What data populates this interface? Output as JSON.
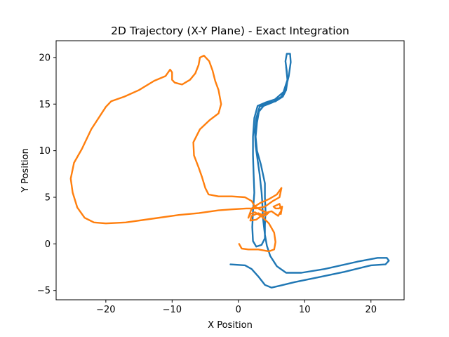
{
  "chart_data": {
    "type": "line",
    "title": "2D Trajectory (X-Y Plane) - Exact Integration",
    "xlabel": "X Position",
    "ylabel": "Y Position",
    "xlim": [
      -27.5,
      25.0
    ],
    "ylim": [
      -6.0,
      21.8
    ],
    "xticks": [
      -20,
      -10,
      0,
      10,
      20
    ],
    "yticks": [
      -5,
      0,
      5,
      10,
      15,
      20
    ],
    "grid": false,
    "series": [
      {
        "color": "#1f77b4",
        "points": [
          [
            -1.2,
            -2.2
          ],
          [
            1.0,
            -2.3
          ],
          [
            2.0,
            -2.7
          ],
          [
            3.0,
            -3.5
          ],
          [
            4.0,
            -4.4
          ],
          [
            5.0,
            -4.7
          ],
          [
            6.2,
            -4.5
          ],
          [
            8.5,
            -4.1
          ],
          [
            12.0,
            -3.6
          ],
          [
            16.0,
            -3.0
          ],
          [
            20.0,
            -2.3
          ],
          [
            22.2,
            -2.2
          ],
          [
            22.7,
            -1.8
          ],
          [
            22.4,
            -1.5
          ],
          [
            21.0,
            -1.5
          ],
          [
            18.0,
            -1.9
          ],
          [
            13.0,
            -2.7
          ],
          [
            9.5,
            -3.1
          ],
          [
            7.2,
            -3.1
          ],
          [
            5.8,
            -2.4
          ],
          [
            4.8,
            -1.3
          ],
          [
            4.3,
            -0.2
          ],
          [
            4.0,
            1.0
          ],
          [
            3.7,
            2.8
          ],
          [
            3.6,
            4.5
          ],
          [
            3.5,
            5.5
          ],
          [
            3.2,
            7.5
          ],
          [
            2.9,
            9.0
          ],
          [
            2.6,
            10.5
          ],
          [
            2.5,
            12.0
          ],
          [
            2.7,
            13.5
          ],
          [
            3.2,
            14.7
          ],
          [
            4.4,
            15.1
          ],
          [
            5.6,
            15.3
          ],
          [
            6.7,
            15.8
          ],
          [
            7.2,
            16.5
          ],
          [
            7.4,
            17.5
          ],
          [
            7.3,
            18.5
          ],
          [
            7.1,
            19.6
          ],
          [
            7.3,
            20.4
          ],
          [
            7.8,
            20.4
          ],
          [
            7.9,
            19.5
          ],
          [
            7.6,
            18.0
          ],
          [
            7.1,
            16.6
          ],
          [
            6.5,
            15.8
          ],
          [
            5.2,
            15.2
          ],
          [
            3.8,
            14.8
          ],
          [
            3.1,
            14.2
          ],
          [
            2.8,
            13.0
          ],
          [
            2.6,
            11.5
          ],
          [
            2.8,
            10.0
          ],
          [
            3.4,
            8.5
          ],
          [
            4.0,
            6.5
          ],
          [
            4.0,
            5.0
          ],
          [
            4.1,
            3.5
          ],
          [
            4.0,
            2.0
          ],
          [
            4.0,
            0.6
          ],
          [
            3.5,
            -0.1
          ],
          [
            2.7,
            -0.3
          ],
          [
            2.2,
            0.3
          ],
          [
            2.1,
            1.8
          ],
          [
            2.2,
            3.5
          ],
          [
            2.4,
            5.5
          ],
          [
            2.3,
            7.5
          ],
          [
            2.2,
            9.5
          ],
          [
            2.2,
            11.5
          ],
          [
            2.4,
            13.5
          ],
          [
            2.9,
            14.8
          ],
          [
            4.2,
            15.2
          ],
          [
            5.5,
            15.5
          ],
          [
            6.8,
            16.3
          ],
          [
            7.4,
            17.6
          ],
          [
            7.2,
            19.0
          ]
        ]
      },
      {
        "color": "#ff7f0e",
        "points": [
          [
            0.1,
            0.0
          ],
          [
            0.5,
            -0.5
          ],
          [
            1.5,
            -0.6
          ],
          [
            3.0,
            -0.6
          ],
          [
            4.6,
            -0.8
          ],
          [
            5.4,
            -0.6
          ],
          [
            5.6,
            0.2
          ],
          [
            5.4,
            1.2
          ],
          [
            4.6,
            2.2
          ],
          [
            3.6,
            2.9
          ],
          [
            2.5,
            3.4
          ],
          [
            1.8,
            3.2
          ],
          [
            1.5,
            2.8
          ],
          [
            2.0,
            3.8
          ],
          [
            3.3,
            4.4
          ],
          [
            4.6,
            4.8
          ],
          [
            5.8,
            5.3
          ],
          [
            6.5,
            6.0
          ],
          [
            6.2,
            5.0
          ],
          [
            5.2,
            4.6
          ],
          [
            4.0,
            4.0
          ],
          [
            2.7,
            3.8
          ],
          [
            1.2,
            3.8
          ],
          [
            -1.0,
            3.7
          ],
          [
            -3.0,
            3.6
          ],
          [
            -6.0,
            3.3
          ],
          [
            -9.0,
            3.1
          ],
          [
            -13.0,
            2.7
          ],
          [
            -17.0,
            2.3
          ],
          [
            -20.0,
            2.2
          ],
          [
            -21.8,
            2.3
          ],
          [
            -23.2,
            2.8
          ],
          [
            -24.3,
            3.9
          ],
          [
            -25.0,
            5.5
          ],
          [
            -25.3,
            7.0
          ],
          [
            -24.8,
            8.7
          ],
          [
            -23.6,
            10.2
          ],
          [
            -22.2,
            12.3
          ],
          [
            -20.0,
            14.7
          ],
          [
            -19.2,
            15.3
          ],
          [
            -17.2,
            15.8
          ],
          [
            -15.0,
            16.5
          ],
          [
            -12.7,
            17.5
          ],
          [
            -11.0,
            18.0
          ],
          [
            -10.3,
            18.7
          ],
          [
            -10.0,
            18.4
          ],
          [
            -10.0,
            17.6
          ],
          [
            -9.6,
            17.3
          ],
          [
            -8.5,
            17.1
          ],
          [
            -7.3,
            17.6
          ],
          [
            -6.5,
            18.3
          ],
          [
            -6.0,
            19.2
          ],
          [
            -5.8,
            20.0
          ],
          [
            -5.2,
            20.2
          ],
          [
            -4.4,
            19.6
          ],
          [
            -3.9,
            18.6
          ],
          [
            -3.5,
            17.5
          ],
          [
            -3.0,
            16.5
          ],
          [
            -2.6,
            15.0
          ],
          [
            -3.0,
            14.0
          ],
          [
            -4.3,
            13.3
          ],
          [
            -5.8,
            12.3
          ],
          [
            -6.8,
            10.9
          ],
          [
            -6.7,
            9.5
          ],
          [
            -6.0,
            8.2
          ],
          [
            -5.5,
            7.2
          ],
          [
            -5.0,
            6.0
          ],
          [
            -4.5,
            5.3
          ],
          [
            -3.0,
            5.1
          ],
          [
            -1.0,
            5.1
          ],
          [
            1.0,
            5.0
          ],
          [
            2.0,
            4.6
          ],
          [
            2.5,
            4.0
          ],
          [
            3.5,
            3.6
          ],
          [
            4.5,
            3.3
          ],
          [
            4.0,
            3.0
          ],
          [
            3.0,
            3.3
          ],
          [
            2.0,
            3.0
          ],
          [
            1.8,
            2.5
          ],
          [
            2.7,
            2.6
          ],
          [
            4.0,
            3.3
          ],
          [
            5.0,
            3.5
          ],
          [
            6.0,
            3.0
          ],
          [
            6.5,
            3.6
          ],
          [
            6.2,
            4.3
          ],
          [
            5.3,
            4.0
          ],
          [
            5.6,
            3.8
          ],
          [
            6.1,
            3.8
          ],
          [
            6.6,
            4.0
          ],
          [
            6.4,
            3.2
          ]
        ]
      }
    ]
  }
}
